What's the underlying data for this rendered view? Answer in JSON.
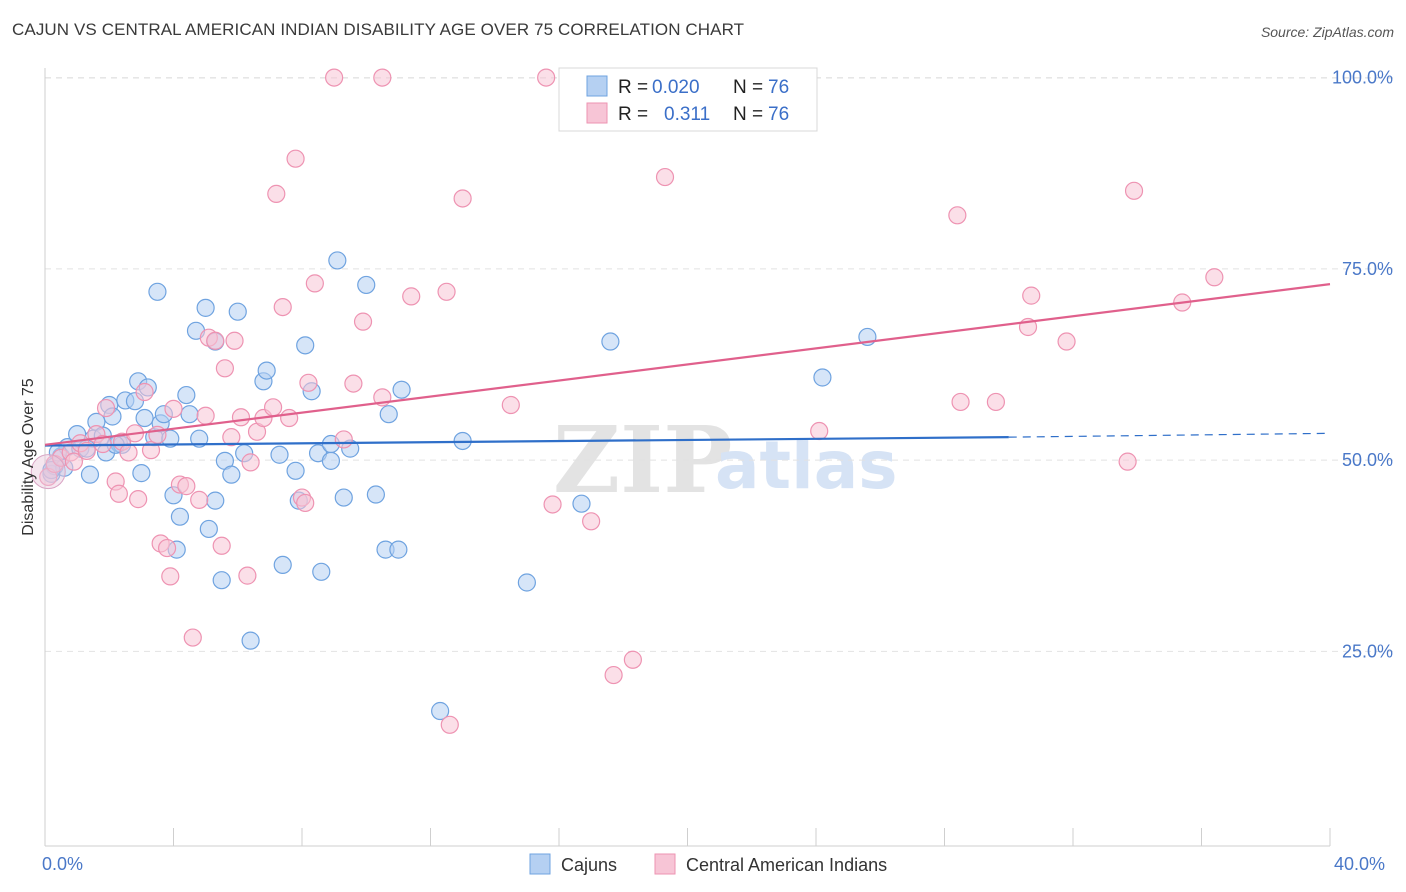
{
  "header": {
    "title": "CAJUN VS CENTRAL AMERICAN INDIAN DISABILITY AGE OVER 75 CORRELATION CHART",
    "source": "Source: ZipAtlas.com"
  },
  "stats": {
    "r_label": "R =",
    "n_label": "N =",
    "rows": [
      {
        "r": "0.020",
        "n": "76",
        "color": "#9bbfea"
      },
      {
        "r": "0.311",
        "n": "76",
        "color": "#f4b0c6"
      }
    ]
  },
  "watermark": {
    "zip": "ZIP",
    "atlas": "atlas"
  },
  "chart_data": {
    "type": "scatter",
    "title": "CAJUN VS CENTRAL AMERICAN INDIAN DISABILITY AGE OVER 75 CORRELATION CHART",
    "xlabel": "",
    "ylabel": "Disability Age Over 75",
    "xlim": [
      0,
      40
    ],
    "ylim": [
      0,
      103
    ],
    "x_tick_labels": [
      "0.0%",
      "40.0%"
    ],
    "y_ticks": [
      {
        "value": 25,
        "label": "25.0%"
      },
      {
        "value": 50,
        "label": "50.0%"
      },
      {
        "value": 75,
        "label": "75.0%"
      },
      {
        "value": 100,
        "label": "100.0%"
      }
    ],
    "grid": true,
    "legend_position": "bottom-center",
    "series": [
      {
        "name": "Cajuns",
        "color": "#6fa3e0",
        "fill": "#b5d0f2",
        "trend": {
          "x0": 0,
          "y0": 51.9,
          "x1": 30,
          "y1": 53.0,
          "dash_to": 40,
          "dash_y": 53.5
        },
        "points": [
          [
            0.2,
            48.2
          ],
          [
            0.3,
            49.2
          ],
          [
            0.5,
            50.5
          ],
          [
            0.7,
            51.7
          ],
          [
            0.6,
            49.0
          ],
          [
            1.0,
            53.4
          ],
          [
            1.1,
            51.5
          ],
          [
            1.4,
            48.1
          ],
          [
            1.5,
            52.8
          ],
          [
            1.6,
            55.0
          ],
          [
            1.8,
            53.2
          ],
          [
            1.9,
            51.0
          ],
          [
            2.0,
            57.2
          ],
          [
            2.1,
            55.7
          ],
          [
            2.3,
            52.2
          ],
          [
            2.5,
            57.8
          ],
          [
            2.4,
            52.0
          ],
          [
            2.8,
            57.7
          ],
          [
            2.9,
            60.3
          ],
          [
            3.0,
            48.3
          ],
          [
            3.1,
            55.5
          ],
          [
            3.2,
            59.5
          ],
          [
            3.4,
            53.0
          ],
          [
            3.5,
            72.0
          ],
          [
            3.6,
            54.8
          ],
          [
            3.7,
            56.0
          ],
          [
            3.9,
            52.8
          ],
          [
            4.0,
            45.4
          ],
          [
            4.1,
            38.3
          ],
          [
            4.2,
            42.6
          ],
          [
            4.4,
            58.5
          ],
          [
            4.5,
            56.0
          ],
          [
            4.7,
            66.9
          ],
          [
            4.8,
            52.8
          ],
          [
            5.0,
            69.9
          ],
          [
            5.1,
            41.0
          ],
          [
            5.3,
            44.7
          ],
          [
            5.3,
            65.5
          ],
          [
            5.5,
            34.3
          ],
          [
            5.6,
            49.9
          ],
          [
            5.8,
            48.1
          ],
          [
            6.0,
            69.4
          ],
          [
            6.2,
            50.9
          ],
          [
            6.4,
            26.4
          ],
          [
            6.8,
            60.3
          ],
          [
            6.9,
            61.7
          ],
          [
            7.3,
            50.7
          ],
          [
            7.4,
            36.3
          ],
          [
            7.8,
            48.6
          ],
          [
            7.9,
            44.7
          ],
          [
            8.1,
            65.0
          ],
          [
            8.3,
            59.0
          ],
          [
            8.5,
            50.9
          ],
          [
            8.6,
            35.4
          ],
          [
            8.9,
            49.9
          ],
          [
            8.9,
            52.1
          ],
          [
            9.1,
            76.1
          ],
          [
            9.3,
            45.1
          ],
          [
            9.5,
            51.5
          ],
          [
            10.0,
            72.9
          ],
          [
            10.3,
            45.5
          ],
          [
            10.6,
            38.3
          ],
          [
            10.7,
            56.0
          ],
          [
            11.0,
            38.3
          ],
          [
            11.1,
            59.2
          ],
          [
            12.3,
            17.2
          ],
          [
            13.0,
            52.5
          ],
          [
            15.0,
            34.0
          ],
          [
            16.7,
            44.3
          ],
          [
            17.6,
            65.5
          ],
          [
            24.2,
            60.8
          ],
          [
            25.6,
            66.1
          ],
          [
            1.3,
            51.5
          ],
          [
            2.2,
            52.0
          ],
          [
            0.4,
            51.0
          ],
          [
            0.2,
            48.7
          ]
        ]
      },
      {
        "name": "Central American Indians",
        "color": "#ee93b2",
        "fill": "#f7c5d6",
        "trend": {
          "x0": 0,
          "y0": 52.0,
          "x1": 40,
          "y1": 73.0
        },
        "points": [
          [
            0.1,
            47.8
          ],
          [
            0.3,
            49.5
          ],
          [
            0.5,
            50.3
          ],
          [
            0.8,
            51.0
          ],
          [
            0.9,
            49.8
          ],
          [
            1.1,
            52.2
          ],
          [
            1.3,
            51.2
          ],
          [
            1.6,
            53.4
          ],
          [
            1.8,
            52.1
          ],
          [
            1.9,
            56.8
          ],
          [
            2.2,
            47.2
          ],
          [
            2.3,
            45.6
          ],
          [
            2.4,
            52.4
          ],
          [
            2.6,
            51.0
          ],
          [
            2.8,
            53.5
          ],
          [
            2.9,
            44.9
          ],
          [
            3.1,
            58.9
          ],
          [
            3.3,
            51.3
          ],
          [
            3.5,
            53.3
          ],
          [
            3.6,
            39.1
          ],
          [
            3.8,
            38.5
          ],
          [
            3.9,
            34.8
          ],
          [
            4.0,
            56.7
          ],
          [
            4.2,
            46.8
          ],
          [
            4.4,
            46.6
          ],
          [
            4.6,
            26.8
          ],
          [
            4.8,
            44.8
          ],
          [
            5.0,
            55.8
          ],
          [
            5.1,
            66.0
          ],
          [
            5.3,
            65.6
          ],
          [
            5.5,
            38.8
          ],
          [
            5.6,
            62.0
          ],
          [
            5.8,
            53.0
          ],
          [
            5.9,
            65.6
          ],
          [
            6.1,
            55.6
          ],
          [
            6.3,
            34.9
          ],
          [
            6.4,
            49.7
          ],
          [
            6.6,
            53.7
          ],
          [
            6.8,
            55.5
          ],
          [
            7.1,
            56.9
          ],
          [
            7.2,
            84.8
          ],
          [
            7.4,
            70.0
          ],
          [
            7.6,
            55.5
          ],
          [
            7.8,
            89.4
          ],
          [
            8.0,
            45.1
          ],
          [
            8.1,
            44.4
          ],
          [
            8.2,
            60.1
          ],
          [
            8.4,
            73.1
          ],
          [
            9.0,
            100.0
          ],
          [
            9.3,
            52.7
          ],
          [
            9.6,
            60.0
          ],
          [
            9.9,
            68.1
          ],
          [
            10.5,
            58.2
          ],
          [
            10.5,
            100.0
          ],
          [
            11.4,
            71.4
          ],
          [
            12.6,
            15.4
          ],
          [
            13.0,
            84.2
          ],
          [
            14.5,
            57.2
          ],
          [
            15.6,
            100.0
          ],
          [
            15.8,
            44.2
          ],
          [
            17.0,
            42.0
          ],
          [
            17.7,
            21.9
          ],
          [
            18.3,
            23.9
          ],
          [
            19.3,
            87.0
          ],
          [
            24.1,
            53.8
          ],
          [
            28.5,
            57.6
          ],
          [
            28.4,
            82.0
          ],
          [
            29.6,
            57.6
          ],
          [
            30.6,
            67.4
          ],
          [
            30.7,
            71.5
          ],
          [
            31.8,
            65.5
          ],
          [
            33.7,
            49.8
          ],
          [
            33.9,
            85.2
          ],
          [
            35.4,
            70.6
          ],
          [
            36.4,
            73.9
          ],
          [
            12.5,
            72.0
          ]
        ]
      }
    ]
  }
}
